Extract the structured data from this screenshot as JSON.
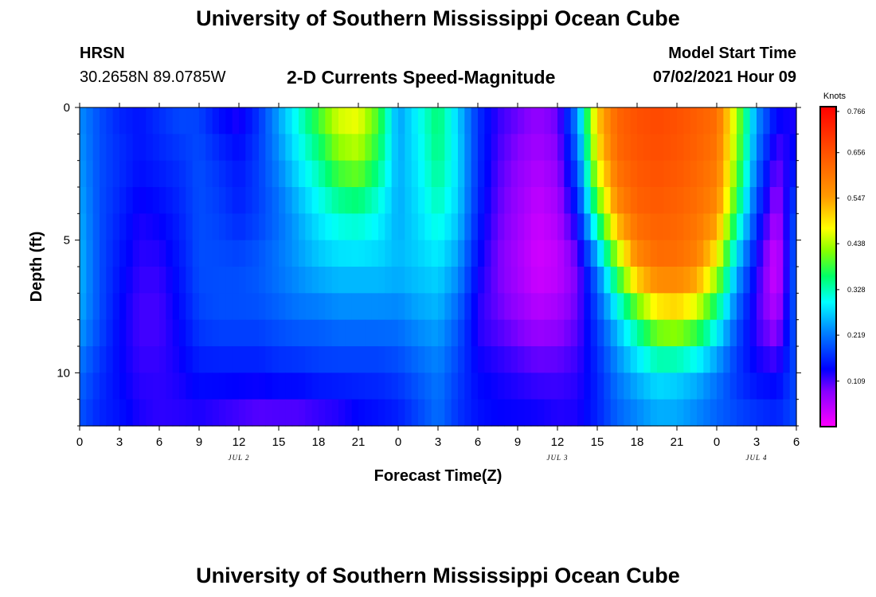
{
  "page": {
    "title": "University of Southern Mississippi Ocean Cube",
    "footer_title": "University of Southern Mississippi Ocean Cube",
    "station": "HRSN",
    "coordinates": "30.2658N  89.0785W",
    "subtitle": "2-D Currents Speed-Magnitude",
    "model_start_label": "Model Start Time",
    "model_start_value": "07/02/2021 Hour 09"
  },
  "chart_data": {
    "type": "heatmap",
    "title": "2-D Currents Speed-Magnitude",
    "xlabel": "Forecast Time(Z)",
    "ylabel": "Depth (ft)",
    "x_ticks": [
      "0",
      "3",
      "6",
      "9",
      "12",
      "15",
      "18",
      "21",
      "0",
      "3",
      "6",
      "9",
      "12",
      "15",
      "18",
      "21",
      "0",
      "3",
      "6"
    ],
    "x_range_hours": [
      0,
      54
    ],
    "date_labels": [
      {
        "label": "JUL 2",
        "hour": 12
      },
      {
        "label": "JUL 3",
        "hour": 36
      },
      {
        "label": "JUL 4",
        "hour": 51
      }
    ],
    "y_ticks": [
      "0",
      "5",
      "10"
    ],
    "y_range_ft": [
      0,
      12
    ],
    "colorbar": {
      "title": "Knots",
      "ticks": [
        "0.766",
        "0.656",
        "0.547",
        "0.438",
        "0.328",
        "0.219",
        "0.109"
      ],
      "range": [
        0,
        0.766
      ]
    },
    "col_hours": [
      0,
      1.5,
      3,
      4.5,
      6,
      7.5,
      9,
      10.5,
      12,
      13.5,
      15,
      16.5,
      18,
      19.5,
      21,
      22.5,
      24,
      25.5,
      27,
      28.5,
      30,
      31.5,
      33,
      34.5,
      36,
      37.5,
      39,
      40.5,
      42,
      43.5,
      45,
      46.5,
      48,
      49.5,
      51,
      52.5,
      54
    ],
    "row_depths_ft": [
      0,
      2,
      4,
      6,
      8,
      10,
      12
    ],
    "speed_knots": [
      [
        0.23,
        0.19,
        0.16,
        0.15,
        0.17,
        0.19,
        0.18,
        0.14,
        0.12,
        0.17,
        0.25,
        0.32,
        0.4,
        0.47,
        0.48,
        0.4,
        0.24,
        0.3,
        0.36,
        0.27,
        0.17,
        0.12,
        0.1,
        0.08,
        0.1,
        0.24,
        0.52,
        0.63,
        0.66,
        0.67,
        0.66,
        0.64,
        0.62,
        0.44,
        0.24,
        0.15,
        0.12
      ],
      [
        0.24,
        0.19,
        0.17,
        0.15,
        0.16,
        0.17,
        0.19,
        0.17,
        0.15,
        0.18,
        0.23,
        0.29,
        0.34,
        0.41,
        0.43,
        0.36,
        0.25,
        0.29,
        0.35,
        0.28,
        0.17,
        0.11,
        0.08,
        0.06,
        0.08,
        0.2,
        0.48,
        0.62,
        0.65,
        0.66,
        0.65,
        0.63,
        0.6,
        0.42,
        0.22,
        0.1,
        0.15
      ],
      [
        0.25,
        0.19,
        0.16,
        0.13,
        0.14,
        0.16,
        0.19,
        0.18,
        0.16,
        0.18,
        0.21,
        0.25,
        0.29,
        0.32,
        0.33,
        0.3,
        0.25,
        0.28,
        0.32,
        0.27,
        0.16,
        0.1,
        0.07,
        0.04,
        0.06,
        0.15,
        0.37,
        0.56,
        0.63,
        0.64,
        0.63,
        0.61,
        0.57,
        0.36,
        0.18,
        0.06,
        0.2
      ],
      [
        0.26,
        0.19,
        0.15,
        0.12,
        0.12,
        0.15,
        0.19,
        0.19,
        0.19,
        0.2,
        0.22,
        0.24,
        0.26,
        0.27,
        0.27,
        0.27,
        0.26,
        0.27,
        0.28,
        0.24,
        0.14,
        0.09,
        0.06,
        0.03,
        0.04,
        0.09,
        0.22,
        0.4,
        0.56,
        0.61,
        0.61,
        0.58,
        0.46,
        0.26,
        0.13,
        0.02,
        0.22
      ],
      [
        0.25,
        0.19,
        0.14,
        0.11,
        0.11,
        0.14,
        0.18,
        0.19,
        0.19,
        0.19,
        0.2,
        0.21,
        0.21,
        0.22,
        0.22,
        0.22,
        0.22,
        0.24,
        0.25,
        0.2,
        0.12,
        0.1,
        0.08,
        0.06,
        0.07,
        0.1,
        0.18,
        0.27,
        0.36,
        0.45,
        0.47,
        0.42,
        0.32,
        0.2,
        0.11,
        0.06,
        0.21
      ],
      [
        0.21,
        0.17,
        0.14,
        0.12,
        0.12,
        0.13,
        0.15,
        0.15,
        0.15,
        0.15,
        0.16,
        0.16,
        0.17,
        0.17,
        0.17,
        0.17,
        0.18,
        0.2,
        0.22,
        0.18,
        0.14,
        0.13,
        0.12,
        0.11,
        0.11,
        0.12,
        0.16,
        0.22,
        0.26,
        0.29,
        0.28,
        0.26,
        0.22,
        0.17,
        0.14,
        0.13,
        0.19
      ],
      [
        0.19,
        0.16,
        0.15,
        0.13,
        0.12,
        0.12,
        0.12,
        0.11,
        0.1,
        0.09,
        0.09,
        0.09,
        0.1,
        0.11,
        0.13,
        0.14,
        0.15,
        0.18,
        0.21,
        0.17,
        0.15,
        0.14,
        0.14,
        0.14,
        0.13,
        0.13,
        0.16,
        0.2,
        0.22,
        0.24,
        0.24,
        0.22,
        0.2,
        0.19,
        0.18,
        0.17,
        0.19
      ]
    ]
  }
}
